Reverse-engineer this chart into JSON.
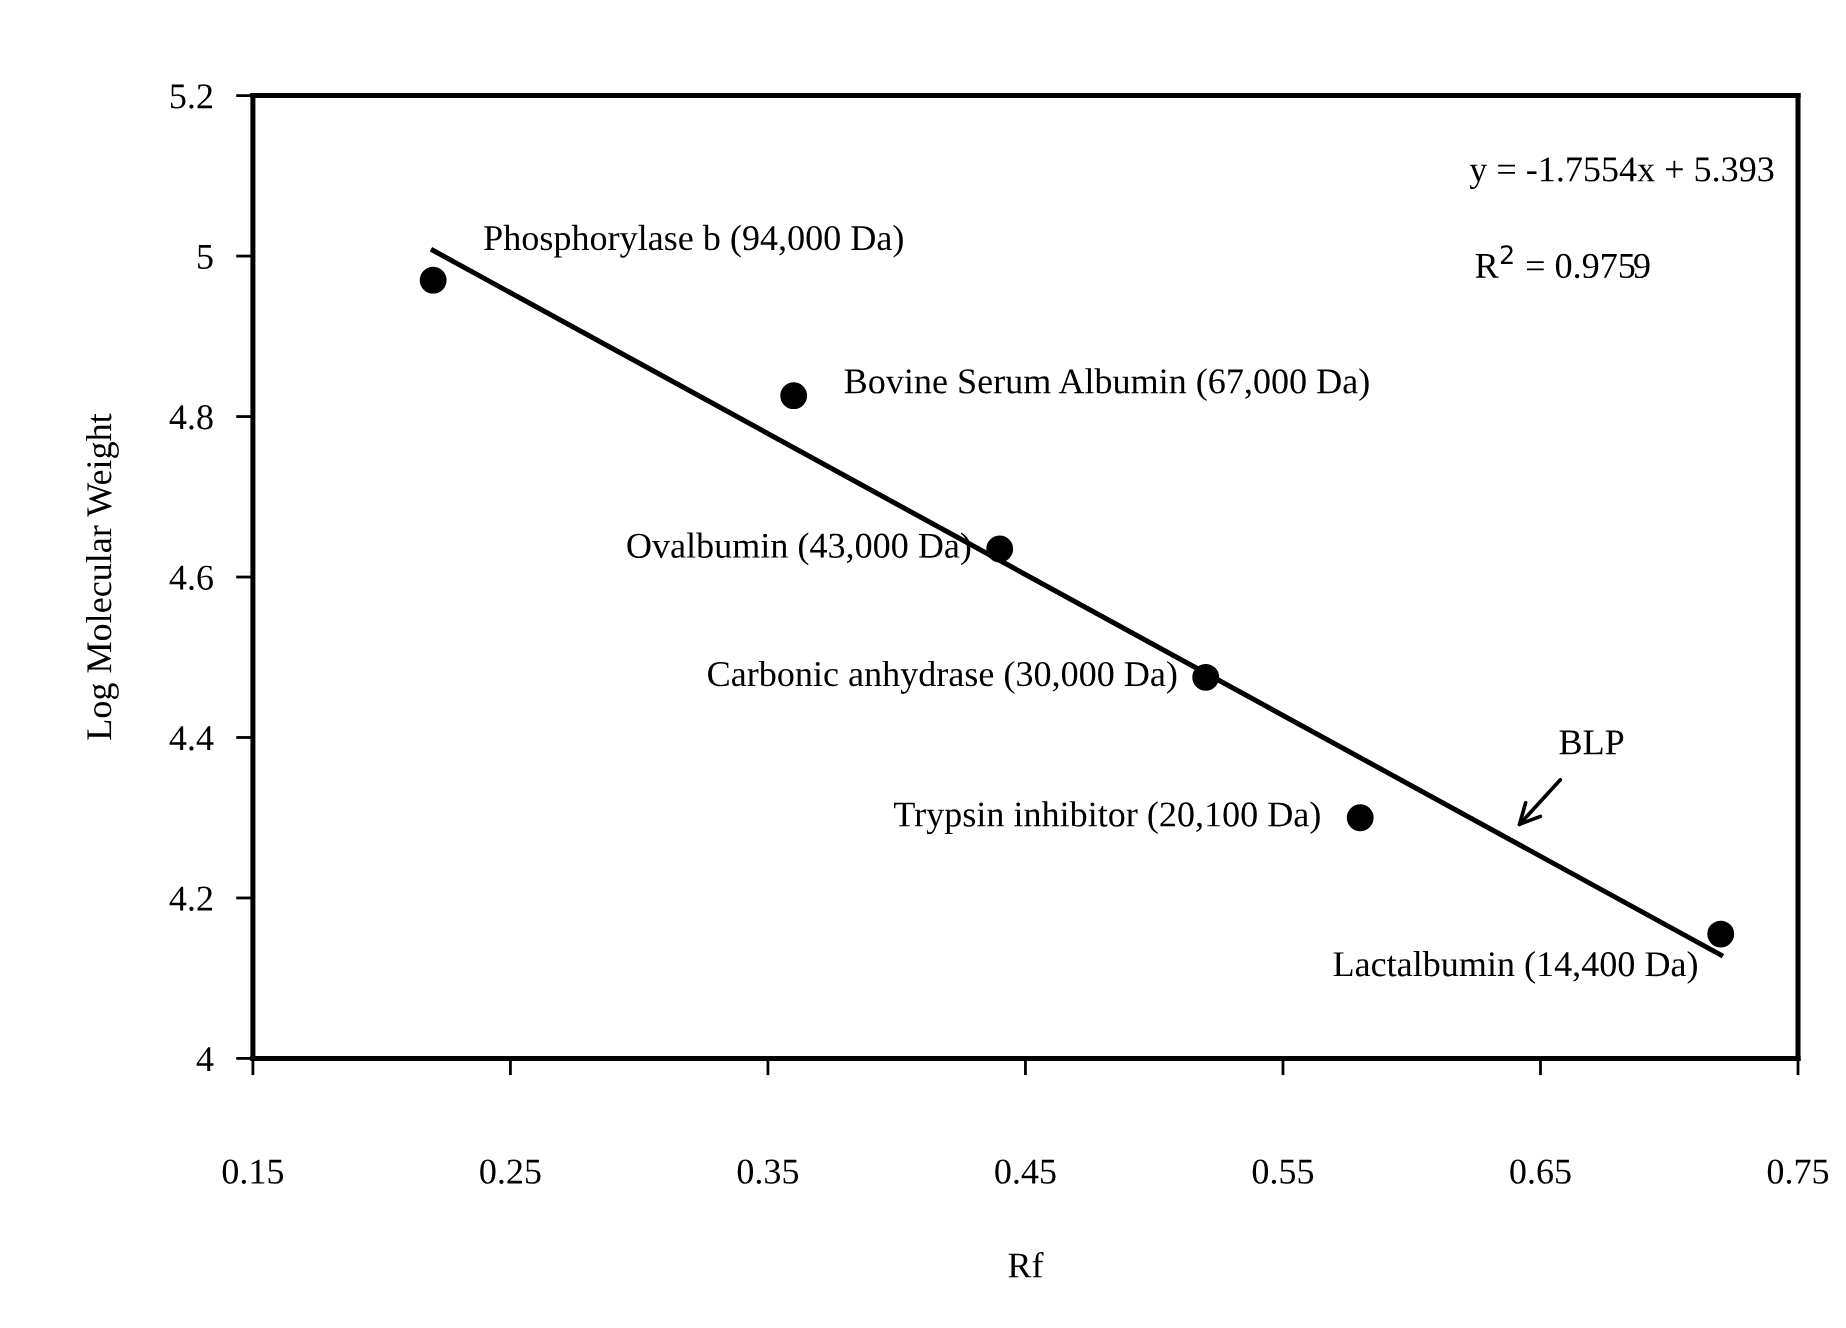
{
  "chart_data": {
    "type": "scatter",
    "xlabel": "Rf",
    "ylabel": "Log Molecular Weight",
    "xlim": [
      0.15,
      0.75
    ],
    "xticks": [
      0.15,
      0.25,
      0.35,
      0.45,
      0.55,
      0.65,
      0.75
    ],
    "ylim": [
      4,
      5.2
    ],
    "yticks": [
      4,
      4.2,
      4.4,
      4.6,
      4.8,
      5,
      5.2
    ],
    "grid": false,
    "legend": false,
    "marker": "circle",
    "series": [
      {
        "color": "#000000",
        "x": [
          0.22,
          0.36,
          0.44,
          0.52,
          0.58,
          0.72
        ],
        "values": [
          4.97,
          4.826,
          4.635,
          4.475,
          4.3,
          4.155
        ]
      },
      {
        "type": "line",
        "color": "#000000",
        "line_style": "solid",
        "marker": "none",
        "x": [
          0.22,
          0.72
        ],
        "values": [
          5.007,
          4.129
        ]
      }
    ],
    "annotations": [
      {
        "text": "Phosphorylase b (94,000 Da)",
        "x": 0.22,
        "y": 4.97
      },
      {
        "text": "Bovine Serum Albumin (67,000 Da)",
        "x": 0.36,
        "y": 4.826
      },
      {
        "text": "Ovalbumin (43,000 Da)",
        "x": 0.44,
        "y": 4.635
      },
      {
        "text": "Carbonic anhydrase (30,000 Da)",
        "x": 0.52,
        "y": 4.475
      },
      {
        "text": "Trypsin inhibitor (20,100 Da)",
        "x": 0.58,
        "y": 4.3
      },
      {
        "text": "Lactalbumin (14,400 Da)",
        "x": 0.72,
        "y": 4.155
      },
      "BLP",
      "y = -1.7554x + 5.393",
      "R$^{2}$ = 0.9759"
    ]
  }
}
